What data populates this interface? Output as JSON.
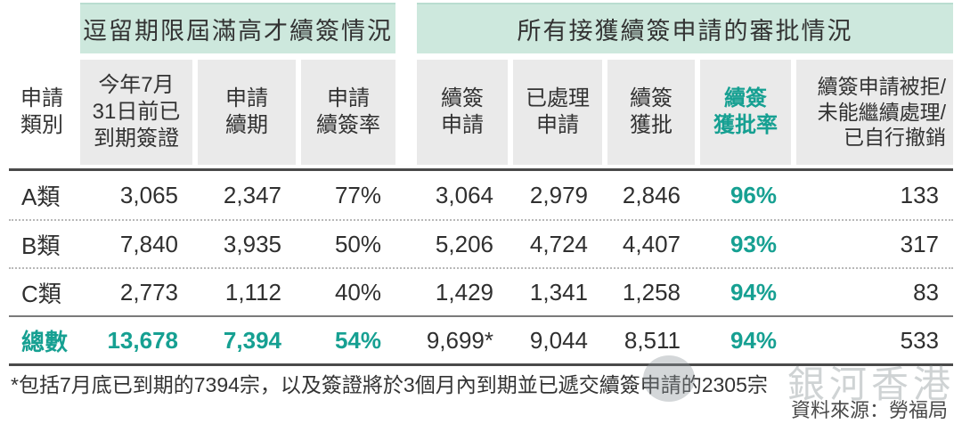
{
  "colors": {
    "teal_accent": "#16a092",
    "mint_band": "#cde8dd",
    "header_cell_bg": "#eaeaea",
    "text_dark": "#2f2f2f"
  },
  "group_headers": {
    "left": "逗留期限屆滿高才續簽情況",
    "right": "所有接獲續簽申請的審批情況"
  },
  "chart_data": {
    "type": "table",
    "columns": [
      "申請\n類別",
      "今年7月\n31日前已\n到期簽證",
      "申請\n續期",
      "申請\n續簽率",
      "續簽\n申請",
      "已處理\n申請",
      "續簽\n獲批",
      "續簽\n獲批率",
      "續簽申請被拒/\n未能繼續處理/\n已自行撤銷"
    ],
    "rows": [
      {
        "category": "A類",
        "values": [
          "3,065",
          "2,347",
          "77%",
          "3,064",
          "2,979",
          "2,846",
          "96%",
          "133"
        ],
        "total": false
      },
      {
        "category": "B類",
        "values": [
          "7,840",
          "3,935",
          "50%",
          "5,206",
          "4,724",
          "4,407",
          "93%",
          "317"
        ],
        "total": false
      },
      {
        "category": "C類",
        "values": [
          "2,773",
          "1,112",
          "40%",
          "1,429",
          "1,341",
          "1,258",
          "94%",
          "83"
        ],
        "total": false
      },
      {
        "category": "總數",
        "values": [
          "13,678",
          "7,394",
          "54%",
          "9,699*",
          "9,044",
          "8,511",
          "94%",
          "533"
        ],
        "total": true
      }
    ]
  },
  "footnote": "*包括7月底已到期的7394宗，以及簽證將於3個月內到期並已遞交續簽申請的2305宗",
  "source": "資料來源：勞福局",
  "watermark": "銀河香港"
}
